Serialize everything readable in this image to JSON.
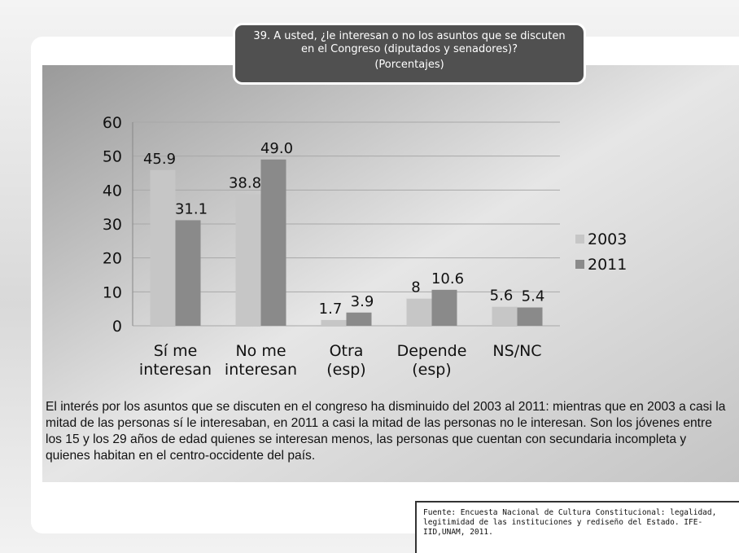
{
  "chart_data": {
    "type": "bar",
    "title": "39. A usted, ¿le interesan o no los asuntos que se discuten en el Congreso (diputados y senadores)?",
    "subtitle": "(Porcentajes)",
    "categories": [
      "Sí me interesan",
      "No me interesan",
      "Otra (esp)",
      "Depende (esp)",
      "NS/NC"
    ],
    "series": [
      {
        "name": "2003",
        "color": "#c6c6c6",
        "values": [
          45.9,
          38.8,
          1.7,
          8,
          5.6
        ],
        "value_labels": [
          "45.9",
          "38.8",
          "1.7",
          "8",
          "5.6"
        ]
      },
      {
        "name": "2011",
        "color": "#8a8a8a",
        "values": [
          31.1,
          49.0,
          3.9,
          10.6,
          5.4
        ],
        "value_labels": [
          "31.1",
          "49.0",
          "3.9",
          "10.6",
          "5.4"
        ]
      }
    ],
    "ylim": [
      0,
      60
    ],
    "yticks": [
      0,
      10,
      20,
      30,
      40,
      50,
      60
    ],
    "grid": true,
    "legend": "right",
    "note": "El interés por los asuntos que se discuten en el congreso ha disminuido del 2003 al 2011: mientras que en 2003 a casi la mitad de las personas sí le interesaban, en 2011 a casi la mitad de las personas no le interesan. Son los jóvenes entre los 15 y los 29 años de edad quienes se interesan menos, las personas que cuentan con secundaria incompleta y quienes habitan en el centro-occidente del país.",
    "source": "Fuente: Encuesta Nacional de Cultura Constitucional: legalidad, legitimidad de las instituciones y rediseño del Estado. IFE-IID,UNAM, 2011."
  }
}
